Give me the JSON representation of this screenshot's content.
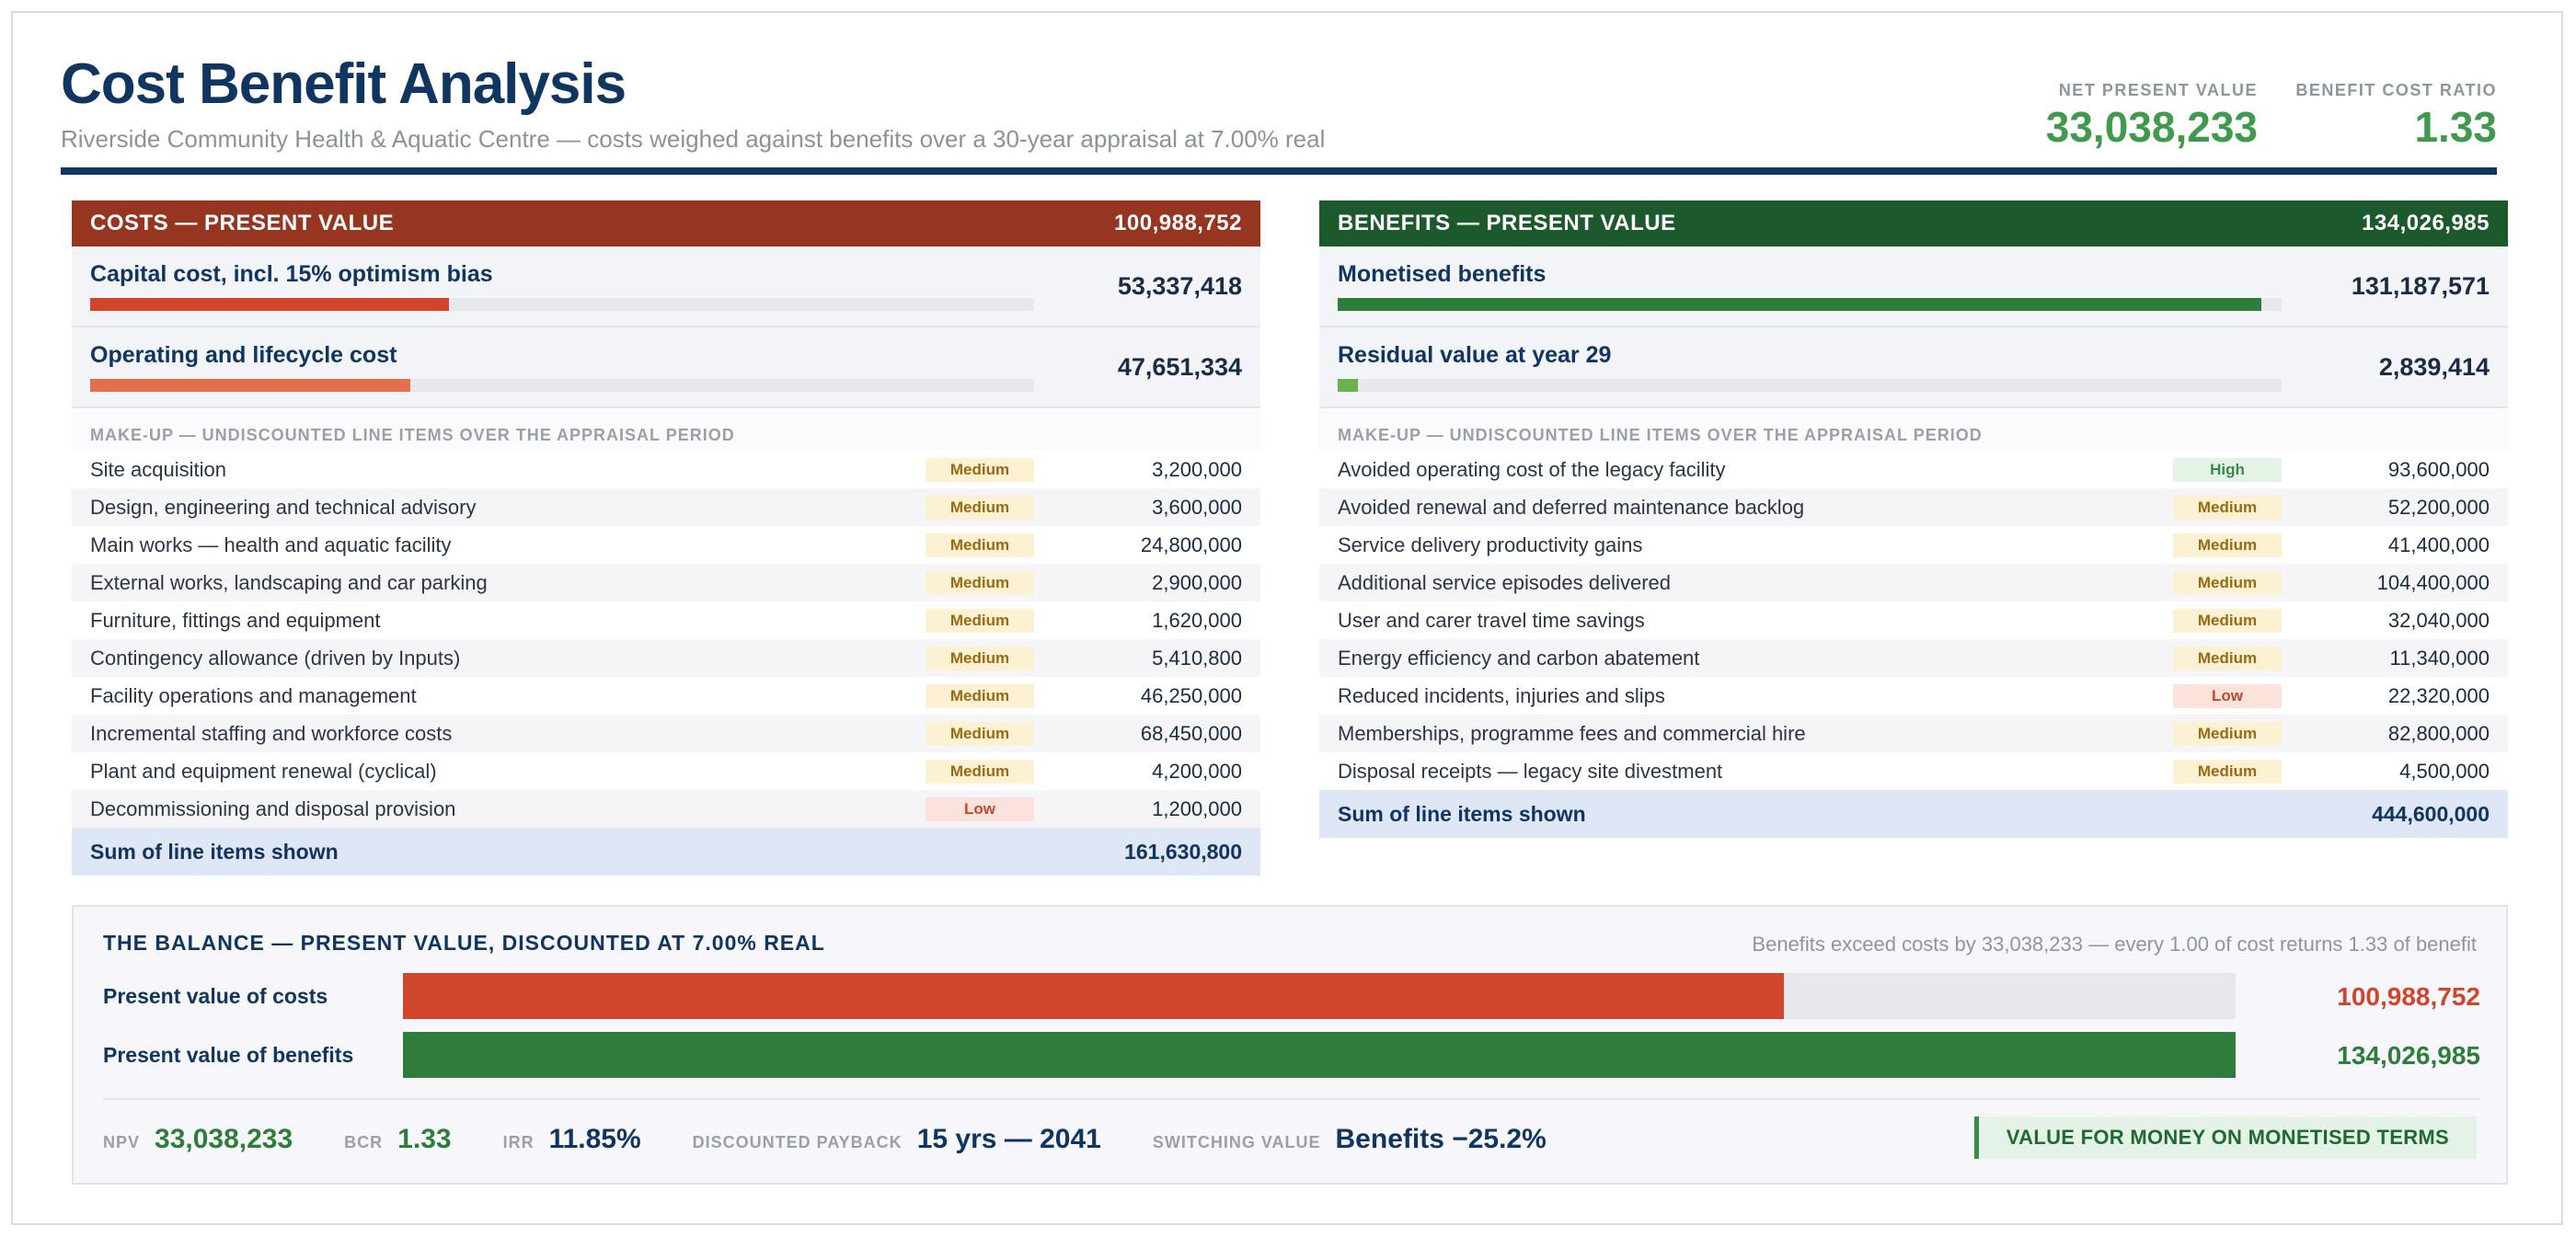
{
  "header": {
    "title": "Cost Benefit Analysis",
    "subtitle": "Riverside Community Health & Aquatic Centre — costs weighed against benefits over a 30-year appraisal at 7.00% real",
    "npv_label": "NET PRESENT VALUE",
    "npv_value": "33,038,233",
    "bcr_label": "BENEFIT COST RATIO",
    "bcr_value": "1.33"
  },
  "colors": {
    "navy": "#0f3560",
    "cost_header": "#963520",
    "benefit_header": "#1c5a2e",
    "cost_bar": "#d0452b",
    "cost_bar_light": "#e2704e",
    "benefit_bar": "#2e7d3a",
    "benefit_bar_light": "#6cb24a"
  },
  "costs": {
    "header_label": "COSTS — PRESENT VALUE",
    "header_total": "100,988,752",
    "pv_items": [
      {
        "label": "Capital cost, incl. 15% optimism bias",
        "value": "53,337,418",
        "share": 0.4
      },
      {
        "label": "Operating and lifecycle cost",
        "value": "47,651,334",
        "share": 0.357
      }
    ],
    "makeup_title": "MAKE-UP — UNDISCOUNTED LINE ITEMS OVER THE APPRAISAL PERIOD",
    "lines": [
      {
        "label": "Site acquisition",
        "confidence": "Medium",
        "value": "3,200,000"
      },
      {
        "label": "Design, engineering and technical advisory",
        "confidence": "Medium",
        "value": "3,600,000"
      },
      {
        "label": "Main works — health and aquatic facility",
        "confidence": "Medium",
        "value": "24,800,000"
      },
      {
        "label": "External works, landscaping and car parking",
        "confidence": "Medium",
        "value": "2,900,000"
      },
      {
        "label": "Furniture, fittings and equipment",
        "confidence": "Medium",
        "value": "1,620,000"
      },
      {
        "label": "Contingency allowance (driven by Inputs)",
        "confidence": "Medium",
        "value": "5,410,800"
      },
      {
        "label": "Facility operations and management",
        "confidence": "Medium",
        "value": "46,250,000"
      },
      {
        "label": "Incremental staffing and workforce costs",
        "confidence": "Medium",
        "value": "68,450,000"
      },
      {
        "label": "Plant and equipment renewal (cyclical)",
        "confidence": "Medium",
        "value": "4,200,000"
      },
      {
        "label": "Decommissioning and disposal provision",
        "confidence": "Low",
        "value": "1,200,000"
      }
    ],
    "sum_label": "Sum of line items shown",
    "sum_value": "161,630,800"
  },
  "benefits": {
    "header_label": "BENEFITS — PRESENT VALUE",
    "header_total": "134,026,985",
    "pv_items": [
      {
        "label": "Monetised benefits",
        "value": "131,187,571",
        "share": 0.979
      },
      {
        "label": "Residual value at year 29",
        "value": "2,839,414",
        "share": 0.021
      }
    ],
    "makeup_title": "MAKE-UP — UNDISCOUNTED LINE ITEMS OVER THE APPRAISAL PERIOD",
    "lines": [
      {
        "label": "Avoided operating cost of the legacy facility",
        "confidence": "High",
        "value": "93,600,000"
      },
      {
        "label": "Avoided renewal and deferred maintenance backlog",
        "confidence": "Medium",
        "value": "52,200,000"
      },
      {
        "label": "Service delivery productivity gains",
        "confidence": "Medium",
        "value": "41,400,000"
      },
      {
        "label": "Additional service episodes delivered",
        "confidence": "Medium",
        "value": "104,400,000"
      },
      {
        "label": "User and carer travel time savings",
        "confidence": "Medium",
        "value": "32,040,000"
      },
      {
        "label": "Energy efficiency and carbon abatement",
        "confidence": "Medium",
        "value": "11,340,000"
      },
      {
        "label": "Reduced incidents, injuries and slips",
        "confidence": "Low",
        "value": "22,320,000"
      },
      {
        "label": "Memberships, programme fees and commercial hire",
        "confidence": "Medium",
        "value": "82,800,000"
      },
      {
        "label": "Disposal receipts — legacy site divestment",
        "confidence": "Medium",
        "value": "4,500,000"
      }
    ],
    "sum_label": "Sum of line items shown",
    "sum_value": "444,600,000"
  },
  "balance": {
    "title": "THE BALANCE — PRESENT VALUE, DISCOUNTED AT 7.00% REAL",
    "note": "Benefits exceed costs by 33,038,233 — every 1.00 of cost returns 1.33 of benefit",
    "costs_label": "Present value of costs",
    "costs_value": "100,988,752",
    "costs_share": 0.7535,
    "benefits_label": "Present value of benefits",
    "benefits_value": "134,026,985",
    "benefits_share": 1.0,
    "metrics": [
      {
        "label": "NPV",
        "value": "33,038,233",
        "tone": "green"
      },
      {
        "label": "BCR",
        "value": "1.33",
        "tone": "green"
      },
      {
        "label": "IRR",
        "value": "11.85%",
        "tone": "navy"
      },
      {
        "label": "DISCOUNTED PAYBACK",
        "value": "15 yrs — 2041",
        "tone": "navy"
      },
      {
        "label": "SWITCHING VALUE",
        "value": "Benefits −25.2%",
        "tone": "navy"
      }
    ],
    "verdict": "VALUE FOR MONEY ON MONETISED TERMS"
  }
}
